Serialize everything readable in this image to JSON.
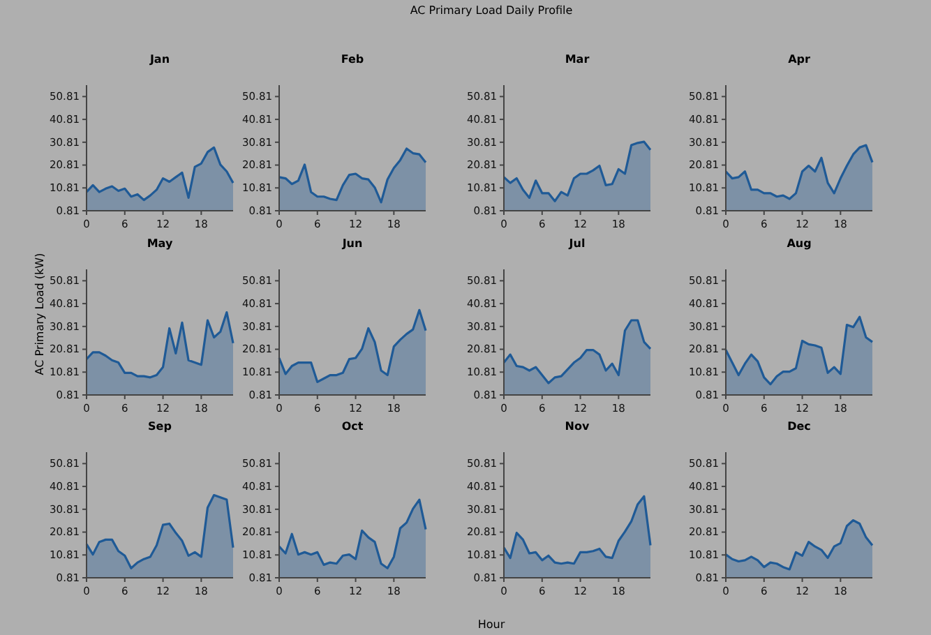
{
  "chart_data": [
    {
      "type": "other",
      "title": "AC Primary Load Daily Profile",
      "xlabel": "Hour",
      "ylabel": "AC Primary Load (kW)"
    },
    {
      "type": "area",
      "title": "Jan",
      "x": [
        0,
        1,
        2,
        3,
        4,
        5,
        6,
        7,
        8,
        9,
        10,
        11,
        12,
        13,
        14,
        15,
        16,
        17,
        18,
        19,
        20,
        21,
        22,
        23
      ],
      "xlim": [
        0,
        23
      ],
      "xticks": [
        0,
        6,
        12,
        18
      ],
      "ylim": [
        0.81,
        55.81
      ],
      "yticks": [
        0.81,
        10.81,
        20.81,
        30.81,
        40.81,
        50.81
      ],
      "series": [
        {
          "color": "#1f5a96",
          "values": [
            9,
            12,
            9,
            10.5,
            11.5,
            9.5,
            10.5,
            7,
            8,
            5.5,
            7.5,
            10,
            15,
            13.5,
            15.5,
            17.5,
            6.5,
            20,
            21.5,
            26.5,
            28.5,
            21,
            18,
            13
          ]
        }
      ]
    },
    {
      "type": "area",
      "title": "Feb",
      "x": [
        0,
        1,
        2,
        3,
        4,
        5,
        6,
        7,
        8,
        9,
        10,
        11,
        12,
        13,
        14,
        15,
        16,
        17,
        18,
        19,
        20,
        21,
        22,
        23
      ],
      "xlim": [
        0,
        23
      ],
      "xticks": [
        0,
        6,
        12,
        18
      ],
      "ylim": [
        0.81,
        55.81
      ],
      "yticks": [
        0.81,
        10.81,
        20.81,
        30.81,
        40.81,
        50.81
      ],
      "series": [
        {
          "color": "#1f5a96",
          "values": [
            15.5,
            15,
            12.5,
            14,
            21,
            9,
            7,
            7,
            6,
            5.5,
            12,
            16.5,
            17,
            15,
            14.5,
            11,
            4.5,
            14.5,
            19.5,
            23,
            28,
            26,
            25.5,
            22
          ]
        }
      ]
    },
    {
      "type": "area",
      "title": "Mar",
      "x": [
        0,
        1,
        2,
        3,
        4,
        5,
        6,
        7,
        8,
        9,
        10,
        11,
        12,
        13,
        14,
        15,
        16,
        17,
        18,
        19,
        20,
        21,
        22,
        23
      ],
      "xlim": [
        0,
        23
      ],
      "xticks": [
        0,
        6,
        12,
        18
      ],
      "ylim": [
        0.81,
        55.81
      ],
      "yticks": [
        0.81,
        10.81,
        20.81,
        30.81,
        40.81,
        50.81
      ],
      "series": [
        {
          "color": "#1f5a96",
          "values": [
            15.5,
            13,
            15,
            10,
            6.5,
            14,
            8.5,
            8.5,
            5,
            9,
            7.5,
            15,
            17,
            17,
            18.5,
            20.5,
            12,
            12.5,
            19,
            17,
            29.5,
            30.5,
            31,
            27.5
          ]
        }
      ]
    },
    {
      "type": "area",
      "title": "Apr",
      "x": [
        0,
        1,
        2,
        3,
        4,
        5,
        6,
        7,
        8,
        9,
        10,
        11,
        12,
        13,
        14,
        15,
        16,
        17,
        18,
        19,
        20,
        21,
        22,
        23
      ],
      "xlim": [
        0,
        23
      ],
      "xticks": [
        0,
        6,
        12,
        18
      ],
      "ylim": [
        0.81,
        55.81
      ],
      "yticks": [
        0.81,
        10.81,
        20.81,
        30.81,
        40.81,
        50.81
      ],
      "series": [
        {
          "color": "#1f5a96",
          "values": [
            18,
            15,
            15.5,
            18,
            10,
            10,
            8.5,
            8.5,
            7,
            7.5,
            6,
            8.5,
            18,
            20.5,
            18,
            24,
            13,
            8.5,
            15,
            20.5,
            25.5,
            28.5,
            29.5,
            22
          ]
        }
      ]
    },
    {
      "type": "area",
      "title": "May",
      "x": [
        0,
        1,
        2,
        3,
        4,
        5,
        6,
        7,
        8,
        9,
        10,
        11,
        12,
        13,
        14,
        15,
        16,
        17,
        18,
        19,
        20,
        21,
        22,
        23
      ],
      "xlim": [
        0,
        23
      ],
      "xticks": [
        0,
        6,
        12,
        18
      ],
      "ylim": [
        0.81,
        55.81
      ],
      "yticks": [
        0.81,
        10.81,
        20.81,
        30.81,
        40.81,
        50.81
      ],
      "series": [
        {
          "color": "#1f5a96",
          "values": [
            16.5,
            19.5,
            19.5,
            18,
            16,
            15,
            10.5,
            10.5,
            9,
            9,
            8.5,
            9.5,
            13,
            30,
            19,
            32.5,
            16,
            15,
            14,
            33.5,
            26,
            28.5,
            37,
            23.5
          ]
        }
      ]
    },
    {
      "type": "area",
      "title": "Jun",
      "x": [
        0,
        1,
        2,
        3,
        4,
        5,
        6,
        7,
        8,
        9,
        10,
        11,
        12,
        13,
        14,
        15,
        16,
        17,
        18,
        19,
        20,
        21,
        22,
        23
      ],
      "xlim": [
        0,
        23
      ],
      "xticks": [
        0,
        6,
        12,
        18
      ],
      "ylim": [
        0.81,
        55.81
      ],
      "yticks": [
        0.81,
        10.81,
        20.81,
        30.81,
        40.81,
        50.81
      ],
      "series": [
        {
          "color": "#1f5a96",
          "values": [
            17,
            10,
            13.5,
            15,
            15,
            15,
            6.5,
            8,
            9.5,
            9.5,
            10.5,
            16.5,
            17,
            21,
            30,
            24,
            11.5,
            9.5,
            22,
            25,
            27.5,
            29.5,
            38,
            29
          ]
        }
      ]
    },
    {
      "type": "area",
      "title": "Jul",
      "x": [
        0,
        1,
        2,
        3,
        4,
        5,
        6,
        7,
        8,
        9,
        10,
        11,
        12,
        13,
        14,
        15,
        16,
        17,
        18,
        19,
        20,
        21,
        22,
        23
      ],
      "xlim": [
        0,
        23
      ],
      "xticks": [
        0,
        6,
        12,
        18
      ],
      "ylim": [
        0.81,
        55.81
      ],
      "yticks": [
        0.81,
        10.81,
        20.81,
        30.81,
        40.81,
        50.81
      ],
      "series": [
        {
          "color": "#1f5a96",
          "values": [
            15,
            18.5,
            13.5,
            13,
            11.5,
            13,
            9.5,
            6,
            8.5,
            9,
            12,
            15,
            17,
            20.5,
            20.5,
            18.5,
            11.5,
            14.5,
            9.5,
            29,
            33.5,
            33.5,
            24,
            21
          ]
        }
      ]
    },
    {
      "type": "area",
      "title": "Aug",
      "x": [
        0,
        1,
        2,
        3,
        4,
        5,
        6,
        7,
        8,
        9,
        10,
        11,
        12,
        13,
        14,
        15,
        16,
        17,
        18,
        19,
        20,
        21,
        22,
        23
      ],
      "xlim": [
        0,
        23
      ],
      "xticks": [
        0,
        6,
        12,
        18
      ],
      "ylim": [
        0.81,
        55.81
      ],
      "yticks": [
        0.81,
        10.81,
        20.81,
        30.81,
        40.81,
        50.81
      ],
      "series": [
        {
          "color": "#1f5a96",
          "values": [
            20.5,
            15,
            9.5,
            14.5,
            18.5,
            15.5,
            8.5,
            5.5,
            9,
            11,
            11,
            12.5,
            24.5,
            23,
            22.5,
            21.5,
            10.5,
            13,
            10,
            31.5,
            30.5,
            35,
            26,
            24
          ]
        }
      ]
    },
    {
      "type": "area",
      "title": "Sep",
      "x": [
        0,
        1,
        2,
        3,
        4,
        5,
        6,
        7,
        8,
        9,
        10,
        11,
        12,
        13,
        14,
        15,
        16,
        17,
        18,
        19,
        20,
        21,
        22,
        23
      ],
      "xlim": [
        0,
        23
      ],
      "xticks": [
        0,
        6,
        12,
        18
      ],
      "ylim": [
        0.81,
        55.81
      ],
      "yticks": [
        0.81,
        10.81,
        20.81,
        30.81,
        40.81,
        50.81
      ],
      "series": [
        {
          "color": "#1f5a96",
          "values": [
            15.5,
            11,
            16.5,
            17.5,
            17.5,
            12.5,
            10.5,
            5,
            7.5,
            9,
            10,
            15,
            24,
            24.5,
            20.5,
            17,
            10.5,
            12,
            10,
            31.5,
            37,
            36,
            35,
            14
          ]
        }
      ]
    },
    {
      "type": "area",
      "title": "Oct",
      "x": [
        0,
        1,
        2,
        3,
        4,
        5,
        6,
        7,
        8,
        9,
        10,
        11,
        12,
        13,
        14,
        15,
        16,
        17,
        18,
        19,
        20,
        21,
        22,
        23
      ],
      "xlim": [
        0,
        23
      ],
      "xticks": [
        0,
        6,
        12,
        18
      ],
      "ylim": [
        0.81,
        55.81
      ],
      "yticks": [
        0.81,
        10.81,
        20.81,
        30.81,
        40.81,
        50.81
      ],
      "series": [
        {
          "color": "#1f5a96",
          "values": [
            14.5,
            11.5,
            20,
            11,
            12,
            11,
            12,
            6.5,
            7.5,
            7,
            10.5,
            11,
            9,
            21.5,
            18.5,
            16.5,
            7,
            5,
            10,
            22.5,
            25,
            31,
            35,
            22
          ]
        }
      ]
    },
    {
      "type": "area",
      "title": "Nov",
      "x": [
        0,
        1,
        2,
        3,
        4,
        5,
        6,
        7,
        8,
        9,
        10,
        11,
        12,
        13,
        14,
        15,
        16,
        17,
        18,
        19,
        20,
        21,
        22,
        23
      ],
      "xlim": [
        0,
        23
      ],
      "xticks": [
        0,
        6,
        12,
        18
      ],
      "ylim": [
        0.81,
        55.81
      ],
      "yticks": [
        0.81,
        10.81,
        20.81,
        30.81,
        40.81,
        50.81
      ],
      "series": [
        {
          "color": "#1f5a96",
          "values": [
            14,
            9.5,
            20.5,
            17.5,
            11.5,
            12,
            8.5,
            10.5,
            7.5,
            7,
            7.5,
            7,
            12,
            12,
            12.5,
            13.5,
            10,
            9.5,
            17,
            21,
            25.5,
            33,
            36.5,
            15
          ]
        }
      ]
    },
    {
      "type": "area",
      "title": "Dec",
      "x": [
        0,
        1,
        2,
        3,
        4,
        5,
        6,
        7,
        8,
        9,
        10,
        11,
        12,
        13,
        14,
        15,
        16,
        17,
        18,
        19,
        20,
        21,
        22,
        23
      ],
      "xlim": [
        0,
        23
      ],
      "xticks": [
        0,
        6,
        12,
        18
      ],
      "ylim": [
        0.81,
        55.81
      ],
      "yticks": [
        0.81,
        10.81,
        20.81,
        30.81,
        40.81,
        50.81
      ],
      "series": [
        {
          "color": "#1f5a96",
          "values": [
            11,
            9,
            8,
            8.5,
            10,
            8.5,
            5.5,
            7.5,
            7,
            5.5,
            4.5,
            12,
            10.5,
            16.5,
            14.5,
            13,
            9.5,
            14.5,
            16,
            23.5,
            26,
            24.5,
            18.5,
            15
          ]
        }
      ]
    }
  ]
}
